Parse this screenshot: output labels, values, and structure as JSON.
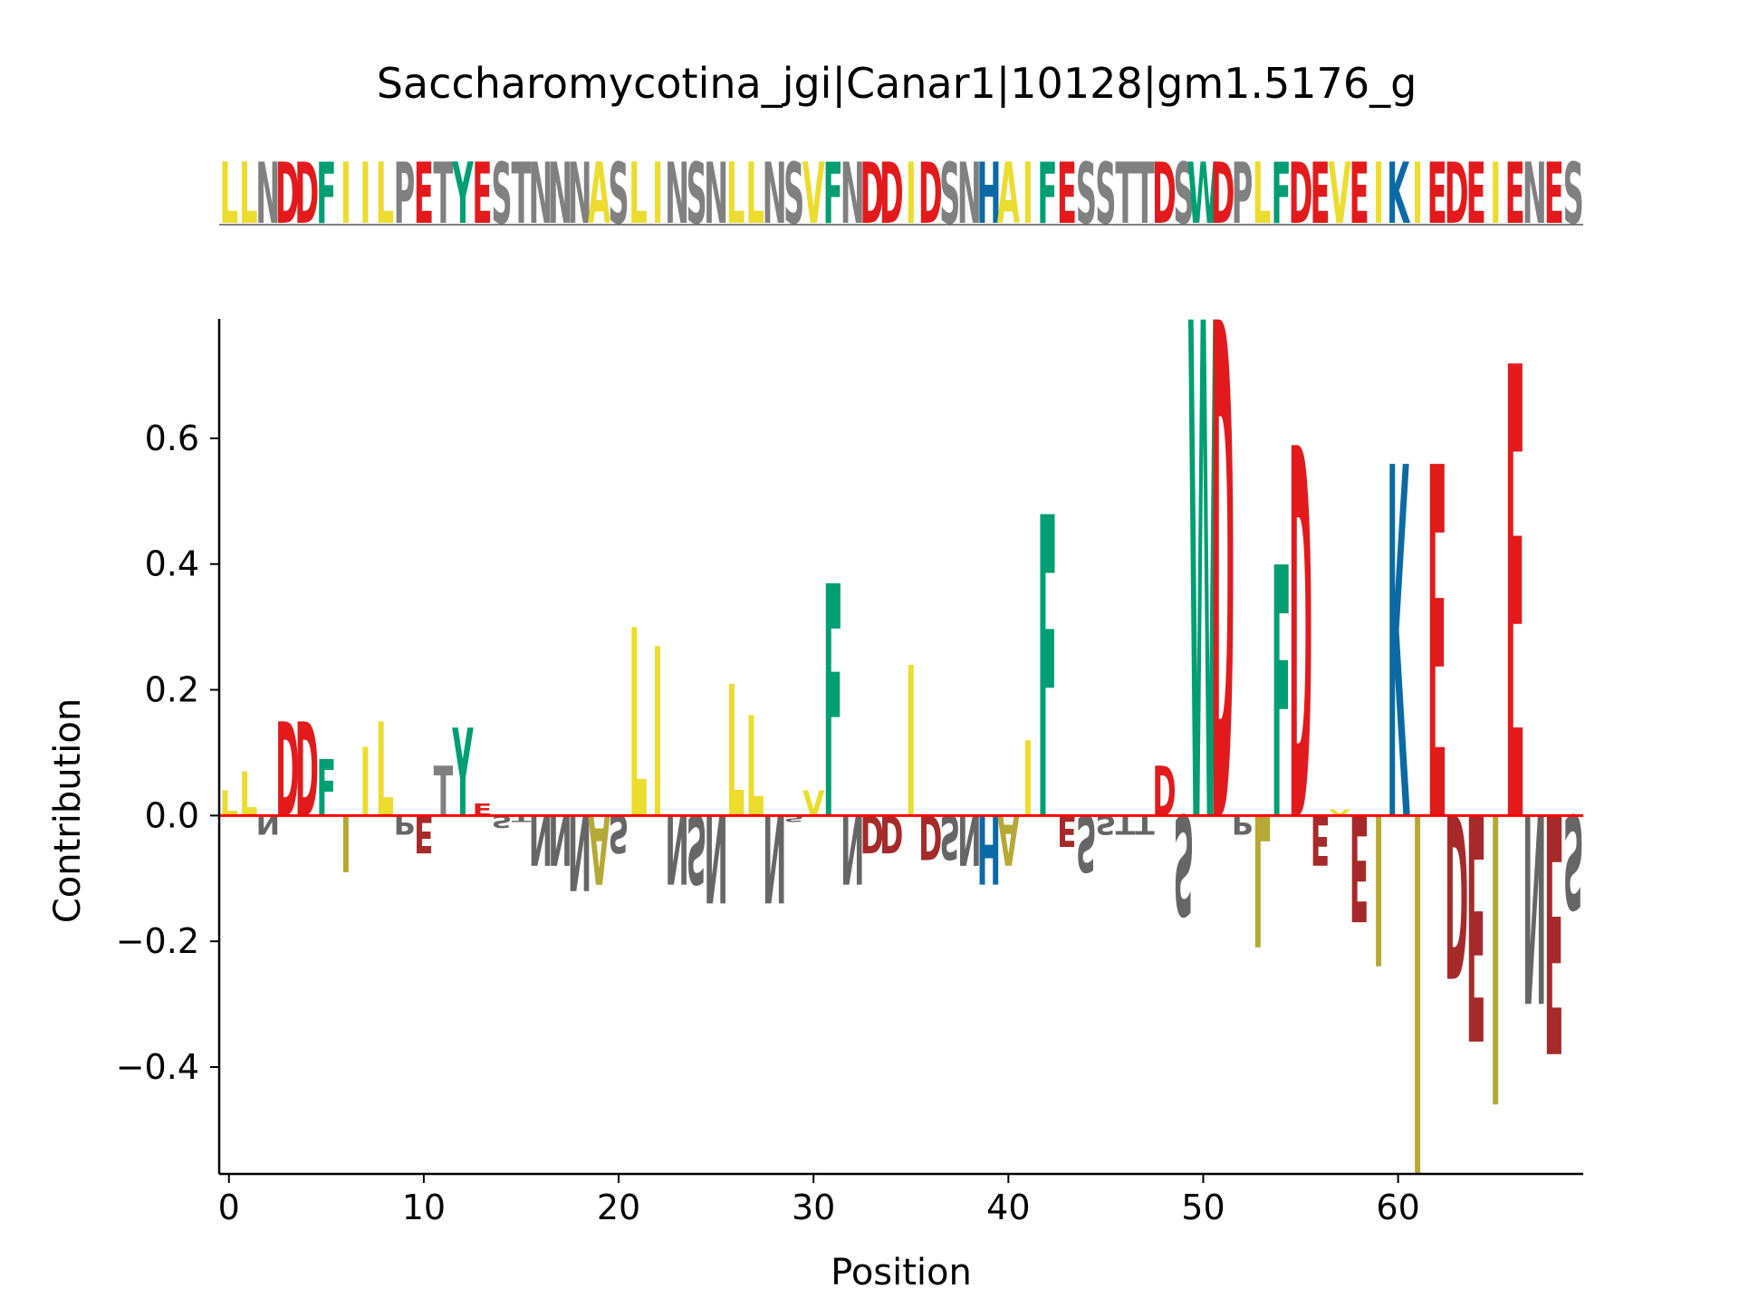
{
  "chart_data": {
    "type": "sequence-logo",
    "title": "Saccharomycotina_jgi|Canar1|10128|gm1.5176_g",
    "sequence": "LLNDDFIILPETYESTNNNASLINSNLLNSVFNDDIDSNHAIFESSTTDSWDPLFDEVEIKIEDEIENES",
    "xlabel": "Position",
    "ylabel": "Contribution",
    "xlim": [
      -0.5,
      69.5
    ],
    "ylim": [
      -0.57,
      0.79
    ],
    "xticks": [
      0,
      10,
      20,
      30,
      40,
      50,
      60
    ],
    "xtick_labels": [
      "0",
      "10",
      "20",
      "30",
      "40",
      "50",
      "60"
    ],
    "yticks": [
      -0.4,
      -0.2,
      0.0,
      0.2,
      0.4,
      0.6
    ],
    "ytick_labels": [
      "−0.4",
      "−0.2",
      "0.0",
      "0.2",
      "0.4",
      "0.6"
    ],
    "contributions": [
      0.04,
      0.07,
      -0.03,
      0.15,
      0.15,
      0.09,
      -0.09,
      0.11,
      0.15,
      -0.03,
      -0.06,
      0.08,
      0.14,
      0.02,
      -0.02,
      -0.01,
      -0.08,
      -0.08,
      -0.12,
      -0.11,
      -0.06,
      0.3,
      0.27,
      -0.11,
      -0.11,
      -0.14,
      0.21,
      0.16,
      -0.14,
      -0.01,
      0.04,
      0.37,
      -0.11,
      -0.06,
      -0.06,
      0.24,
      -0.07,
      -0.07,
      -0.08,
      -0.11,
      -0.08,
      0.12,
      0.48,
      -0.05,
      -0.09,
      -0.03,
      -0.03,
      -0.03,
      0.08,
      -0.16,
      0.79,
      0.79,
      -0.03,
      -0.21,
      0.4,
      0.59,
      -0.08,
      0.01,
      -0.17,
      -0.24,
      0.56,
      -0.57,
      0.56,
      -0.26,
      -0.36,
      -0.46,
      0.72,
      -0.3,
      -0.38,
      -0.15
    ],
    "residue_colors": {
      "hydrophobic": "#ebdc2e",
      "acidic": "#e31a1c",
      "acidic_negative": "#a62a2a",
      "aromatic_polar": "#009e73",
      "basic": "#0b6aa5",
      "polar": "#808080",
      "polar_negative": "#666666",
      "hydrophobic_negative": "#b5a835",
      "baseline": "#ff0000"
    }
  }
}
